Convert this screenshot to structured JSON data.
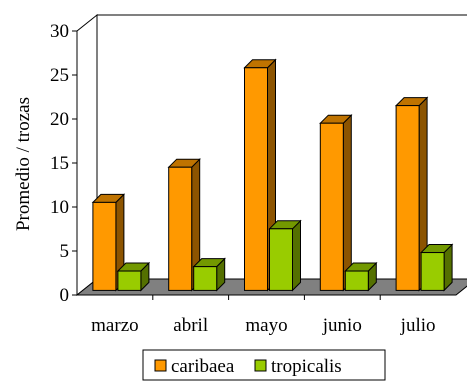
{
  "chart_data": {
    "type": "bar",
    "categories": [
      "marzo",
      "abril",
      "mayo",
      "junio",
      "julio"
    ],
    "series": [
      {
        "name": "caribaea",
        "values": [
          10,
          14,
          25.3,
          19,
          21
        ],
        "color": "#FF9900"
      },
      {
        "name": "tropicalis",
        "values": [
          2.2,
          2.7,
          7,
          2.2,
          4.3
        ],
        "color": "#99CC00"
      }
    ],
    "ylabel": "Promedio / trozas",
    "xlabel": "",
    "ylim": [
      0,
      30
    ],
    "yticks": [
      0,
      5,
      10,
      15,
      20,
      25,
      30
    ],
    "grid": false,
    "style": "3d-column",
    "floor_color": "#808080",
    "legend_position": "bottom"
  }
}
